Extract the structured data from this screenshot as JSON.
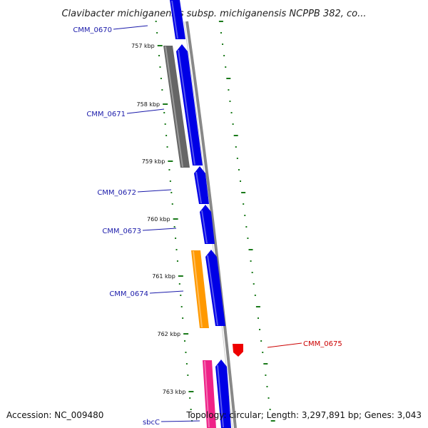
{
  "title": "Clavibacter michiganensis subsp. michiganensis NCPPB 382, co...",
  "footer": {
    "accession": "Accession: NC_009480",
    "info": "Topology: circular; Length: 3,297,891 bp; Genes: 3,043"
  },
  "ticks": [
    "757 kbp",
    "758 kbp",
    "759 kbp",
    "760 kbp",
    "761 kbp",
    "762 kbp",
    "763 kbp"
  ],
  "colors": {
    "cds_forward": "#0000e6",
    "cds_reverse_gray": "#666666",
    "cds_reverse_orange": "#ff9900",
    "cds_reverse_pink": "#ee2288",
    "red_feature": "#ee0000",
    "tick_green": "#1a7a1a",
    "backbone": "#888888",
    "label_blue": "#1a1aaa",
    "label_red": "#cc0000"
  },
  "genes": [
    {
      "name": "CMM_0670",
      "color": "label_blue"
    },
    {
      "name": "CMM_0671",
      "color": "label_blue"
    },
    {
      "name": "CMM_0672",
      "color": "label_blue"
    },
    {
      "name": "CMM_0673",
      "color": "label_blue"
    },
    {
      "name": "CMM_0674",
      "color": "label_blue"
    },
    {
      "name": "CMM_0675",
      "color": "label_red"
    },
    {
      "name": "sbcC",
      "color": "label_blue"
    }
  ]
}
